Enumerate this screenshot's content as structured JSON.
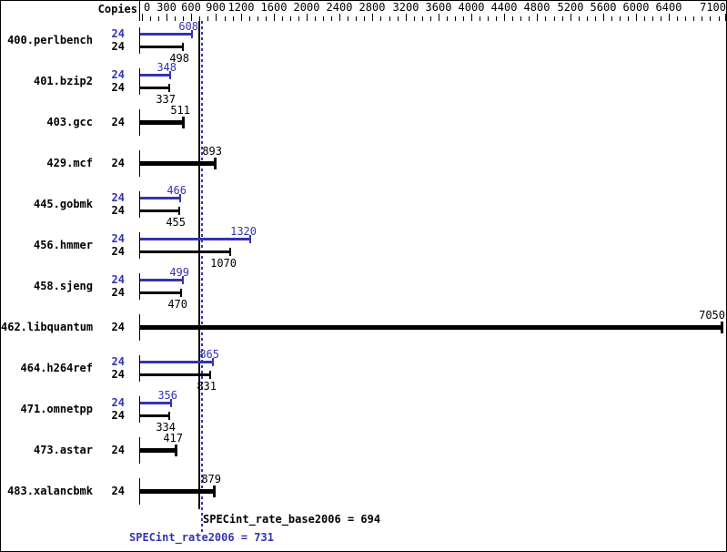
{
  "header": {
    "copies_label": "Copies"
  },
  "colors": {
    "peak_blue": "#3434b2",
    "base_black": "#000000",
    "background": "#ffffff",
    "border": "#000000"
  },
  "chart_data": {
    "type": "bar",
    "orientation": "horizontal",
    "x_axis": {
      "min": 0,
      "max": 7100,
      "labeled_ticks": [
        0,
        300,
        600,
        900,
        1200,
        1600,
        2000,
        2400,
        2800,
        3200,
        3600,
        4000,
        4400,
        4800,
        5200,
        5600,
        6000,
        6400,
        7100
      ],
      "minor_tick_step": 100
    },
    "series_names": {
      "peak": "SPECint_rate2006 (blue)",
      "base": "SPECint_rate_base2006 (black)"
    },
    "benchmarks": [
      {
        "name": "400.perlbench",
        "copies": 24,
        "peak": 608,
        "base": 498
      },
      {
        "name": "401.bzip2",
        "copies": 24,
        "peak": 348,
        "base": 337
      },
      {
        "name": "403.gcc",
        "copies": 24,
        "peak": null,
        "base": 511
      },
      {
        "name": "429.mcf",
        "copies": 24,
        "peak": null,
        "base": 893
      },
      {
        "name": "445.gobmk",
        "copies": 24,
        "peak": 466,
        "base": 455
      },
      {
        "name": "456.hmmer",
        "copies": 24,
        "peak": 1320,
        "base": 1070
      },
      {
        "name": "458.sjeng",
        "copies": 24,
        "peak": 499,
        "base": 470
      },
      {
        "name": "462.libquantum",
        "copies": 24,
        "peak": null,
        "base": 7050
      },
      {
        "name": "464.h264ref",
        "copies": 24,
        "peak": 865,
        "base": 831
      },
      {
        "name": "471.omnetpp",
        "copies": 24,
        "peak": 356,
        "base": 334
      },
      {
        "name": "473.astar",
        "copies": 24,
        "peak": null,
        "base": 417
      },
      {
        "name": "483.xalancbmk",
        "copies": 24,
        "peak": null,
        "base": 879
      }
    ],
    "summary": {
      "base": {
        "label": "SPECint_rate_base2006",
        "value": 694
      },
      "peak": {
        "label": "SPECint_rate2006",
        "value": 731
      }
    }
  }
}
